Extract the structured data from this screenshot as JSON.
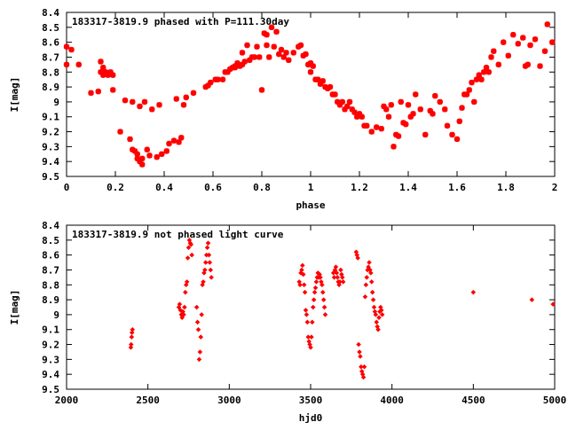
{
  "chart_data": [
    {
      "type": "scatter",
      "title": "183317-3819.9 phased with P=111.30day",
      "xlabel": "phase",
      "ylabel": "I[mag]",
      "xlim": [
        0,
        2
      ],
      "ylim": [
        9.5,
        8.4
      ],
      "y_inverted": true,
      "xticks": [
        "0",
        "0.2",
        "0.4",
        "0.6",
        "0.8",
        "1",
        "1.2",
        "1.4",
        "1.6",
        "1.8",
        "2"
      ],
      "yticks": [
        "8.4",
        "8.5",
        "8.6",
        "8.7",
        "8.8",
        "8.9",
        "9",
        "9.1",
        "9.2",
        "9.3",
        "9.4",
        "9.5"
      ],
      "marker": "star",
      "color": "#ff0000",
      "series": [
        {
          "x": [
            0.0,
            0.0,
            0.02,
            0.05,
            0.1,
            0.13,
            0.14,
            0.14,
            0.15,
            0.15,
            0.16,
            0.17,
            0.18,
            0.19,
            0.19,
            0.22,
            0.24,
            0.26,
            0.27,
            0.27,
            0.28,
            0.29,
            0.29,
            0.3,
            0.3,
            0.31,
            0.31,
            0.32,
            0.33,
            0.34,
            0.35,
            0.37,
            0.38,
            0.39,
            0.41,
            0.42,
            0.44,
            0.45,
            0.46,
            0.47,
            0.48,
            0.49,
            0.52,
            0.57,
            0.58,
            0.59,
            0.61,
            0.62,
            0.64,
            0.65,
            0.66,
            0.67,
            0.68,
            0.69,
            0.69,
            0.7,
            0.71,
            0.72,
            0.72,
            0.73,
            0.74,
            0.75,
            0.76,
            0.77,
            0.78,
            0.79,
            0.8,
            0.81,
            0.82,
            0.82,
            0.83,
            0.84,
            0.85,
            0.86,
            0.87,
            0.88,
            0.89,
            0.9,
            0.91,
            0.93,
            0.95,
            0.96,
            0.97,
            0.98,
            0.99,
            1.0,
            1.0,
            1.01,
            1.02,
            1.03,
            1.04,
            1.05,
            1.06,
            1.07,
            1.08,
            1.09,
            1.1,
            1.11,
            1.12,
            1.13,
            1.14,
            1.15,
            1.16,
            1.17,
            1.18,
            1.19,
            1.2,
            1.21,
            1.22,
            1.23,
            1.25,
            1.27,
            1.29,
            1.3,
            1.31,
            1.32,
            1.33,
            1.34,
            1.35,
            1.36,
            1.37,
            1.38,
            1.39,
            1.4,
            1.41,
            1.42,
            1.43,
            1.45,
            1.47,
            1.49,
            1.5,
            1.51,
            1.53,
            1.55,
            1.56,
            1.58,
            1.6,
            1.61,
            1.62,
            1.63,
            1.64,
            1.65,
            1.66,
            1.67,
            1.68,
            1.69,
            1.7,
            1.71,
            1.72,
            1.73,
            1.74,
            1.75,
            1.77,
            1.79,
            1.81,
            1.83,
            1.85,
            1.87,
            1.88,
            1.89,
            1.9,
            1.92,
            1.94,
            1.96,
            1.97,
            1.99
          ],
          "y": [
            8.63,
            8.75,
            8.65,
            8.75,
            8.94,
            8.93,
            8.73,
            8.8,
            8.77,
            8.82,
            8.8,
            8.82,
            8.8,
            8.92,
            8.82,
            9.2,
            8.99,
            9.25,
            9.32,
            9.0,
            9.33,
            9.38,
            9.35,
            9.4,
            9.03,
            9.42,
            9.38,
            9.0,
            9.32,
            9.36,
            9.05,
            9.37,
            9.02,
            9.35,
            9.33,
            9.28,
            9.26,
            8.98,
            9.27,
            9.24,
            9.02,
            8.97,
            8.94,
            8.9,
            8.89,
            8.87,
            8.85,
            8.85,
            8.85,
            8.8,
            8.8,
            8.78,
            8.77,
            8.77,
            8.76,
            8.74,
            8.76,
            8.75,
            8.67,
            8.73,
            8.62,
            8.72,
            8.7,
            8.7,
            8.63,
            8.7,
            8.92,
            8.54,
            8.62,
            8.55,
            8.7,
            8.5,
            8.63,
            8.53,
            8.68,
            8.65,
            8.7,
            8.67,
            8.72,
            8.67,
            8.63,
            8.62,
            8.69,
            8.68,
            8.75,
            8.8,
            8.74,
            8.76,
            8.85,
            8.85,
            8.88,
            8.86,
            8.9,
            8.91,
            8.9,
            8.95,
            8.95,
            9.0,
            9.02,
            9.0,
            9.05,
            9.03,
            9.0,
            9.05,
            9.07,
            9.1,
            9.08,
            9.1,
            9.16,
            9.16,
            9.2,
            9.17,
            9.18,
            9.03,
            9.05,
            9.1,
            9.02,
            9.3,
            9.22,
            9.23,
            9.0,
            9.14,
            9.15,
            9.02,
            9.1,
            9.08,
            8.95,
            9.05,
            9.22,
            9.06,
            9.08,
            8.96,
            9.0,
            9.05,
            9.16,
            9.22,
            9.25,
            9.13,
            9.04,
            8.95,
            8.95,
            8.92,
            8.87,
            9.0,
            8.85,
            8.82,
            8.85,
            8.8,
            8.77,
            8.8,
            8.7,
            8.66,
            8.75,
            8.6,
            8.69,
            8.55,
            8.61,
            8.57,
            8.76,
            8.75,
            8.62,
            8.58,
            8.76,
            8.66,
            8.48,
            8.6
          ]
        }
      ]
    },
    {
      "type": "scatter",
      "title": "183317-3819.9 not phased light curve",
      "xlabel": "hjd0",
      "ylabel": "I[mag]",
      "xlim": [
        2000,
        5000
      ],
      "ylim": [
        9.5,
        8.4
      ],
      "y_inverted": true,
      "xticks": [
        "2000",
        "2500",
        "3000",
        "3500",
        "4000",
        "4500",
        "5000"
      ],
      "yticks": [
        "8.4",
        "8.5",
        "8.6",
        "8.7",
        "8.8",
        "8.9",
        "9",
        "9.1",
        "9.2",
        "9.3",
        "9.4",
        "9.5"
      ],
      "marker": "diamond",
      "color": "#ff0000",
      "series": [
        {
          "x": [
            2395,
            2397,
            2400,
            2402,
            2405,
            2690,
            2695,
            2700,
            2705,
            2710,
            2715,
            2720,
            2725,
            2730,
            2735,
            2740,
            2745,
            2750,
            2755,
            2760,
            2765,
            2770,
            2800,
            2805,
            2810,
            2815,
            2820,
            2825,
            2830,
            2835,
            2840,
            2845,
            2850,
            2855,
            2860,
            2865,
            2870,
            2875,
            2880,
            2885,
            2890,
            3430,
            3435,
            3440,
            3445,
            3450,
            3455,
            3460,
            3465,
            3470,
            3475,
            3480,
            3485,
            3490,
            3495,
            3500,
            3505,
            3510,
            3515,
            3520,
            3525,
            3530,
            3535,
            3540,
            3545,
            3550,
            3555,
            3560,
            3565,
            3570,
            3575,
            3580,
            3585,
            3590,
            3640,
            3645,
            3650,
            3655,
            3660,
            3665,
            3670,
            3675,
            3680,
            3685,
            3690,
            3695,
            3700,
            3780,
            3785,
            3790,
            3795,
            3800,
            3805,
            3810,
            3815,
            3820,
            3825,
            3830,
            3835,
            3840,
            3845,
            3850,
            3855,
            3860,
            3865,
            3870,
            3875,
            3880,
            3885,
            3890,
            3895,
            3900,
            3905,
            3910,
            3915,
            3920,
            3925,
            3930,
            3935,
            3940,
            4500,
            4860,
            4990
          ],
          "y": [
            9.22,
            9.2,
            9.15,
            9.12,
            9.1,
            8.95,
            8.93,
            8.97,
            9.0,
            9.02,
            8.98,
            9.0,
            8.95,
            8.85,
            8.8,
            8.78,
            8.62,
            8.55,
            8.5,
            8.52,
            8.53,
            8.6,
            8.95,
            9.05,
            9.1,
            9.3,
            9.25,
            9.15,
            9.0,
            8.8,
            8.78,
            8.72,
            8.7,
            8.65,
            8.6,
            8.55,
            8.52,
            8.6,
            8.65,
            8.7,
            8.75,
            8.78,
            8.8,
            8.72,
            8.7,
            8.67,
            8.73,
            8.8,
            8.85,
            8.97,
            9.0,
            9.05,
            9.15,
            9.18,
            9.2,
            9.22,
            9.15,
            9.05,
            8.95,
            8.9,
            8.85,
            8.82,
            8.78,
            8.75,
            8.72,
            8.75,
            8.73,
            8.75,
            8.78,
            8.8,
            8.85,
            8.9,
            8.95,
            9.0,
            8.72,
            8.75,
            8.7,
            8.68,
            8.72,
            8.75,
            8.78,
            8.8,
            8.78,
            8.7,
            8.73,
            8.75,
            8.78,
            8.58,
            8.6,
            8.62,
            9.2,
            9.25,
            9.28,
            9.35,
            9.38,
            9.4,
            9.42,
            9.35,
            8.88,
            8.8,
            8.75,
            8.7,
            8.68,
            8.65,
            8.7,
            8.72,
            8.78,
            8.85,
            8.9,
            8.95,
            8.98,
            9.0,
            9.05,
            9.08,
            9.1,
            9.02,
            8.98,
            8.95,
            8.97,
            9.0,
            8.85,
            8.9,
            8.93
          ]
        }
      ]
    }
  ]
}
